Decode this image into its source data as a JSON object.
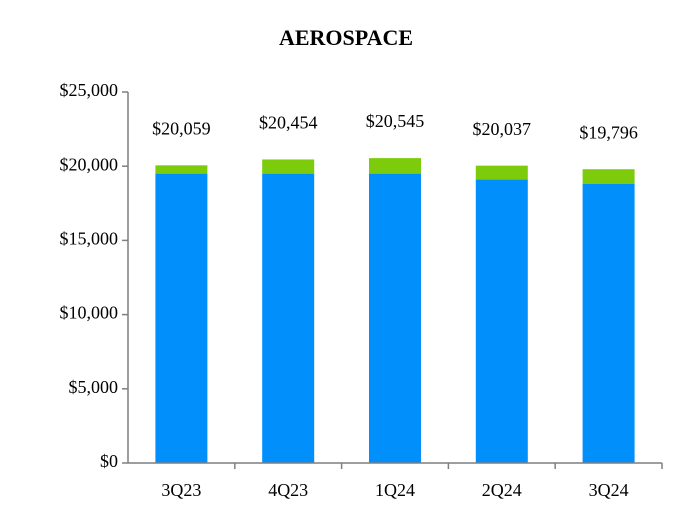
{
  "chart_data": {
    "type": "stacked_bar",
    "title": "AEROSPACE",
    "categories": [
      "3Q23",
      "4Q23",
      "1Q24",
      "2Q24",
      "3Q24"
    ],
    "series": [
      {
        "color": "#008ffb",
        "values": [
          19500,
          19500,
          19500,
          19100,
          18800
        ]
      },
      {
        "color": "#7ccc0c",
        "values": [
          559,
          954,
          1045,
          937,
          996
        ]
      }
    ],
    "totals": [
      20059,
      20454,
      20545,
      20037,
      19796
    ],
    "total_labels": [
      "$20,059",
      "$20,454",
      "$20,545",
      "$20,037",
      "$19,796"
    ],
    "ylim": [
      0,
      25000
    ],
    "yticks": [
      {
        "value": 0,
        "label": "$0"
      },
      {
        "value": 5000,
        "label": "$5,000"
      },
      {
        "value": 10000,
        "label": "$10,000"
      },
      {
        "value": 15000,
        "label": "$15,000"
      },
      {
        "value": 20000,
        "label": "$20,000"
      },
      {
        "value": 25000,
        "label": "$25,000"
      }
    ]
  }
}
